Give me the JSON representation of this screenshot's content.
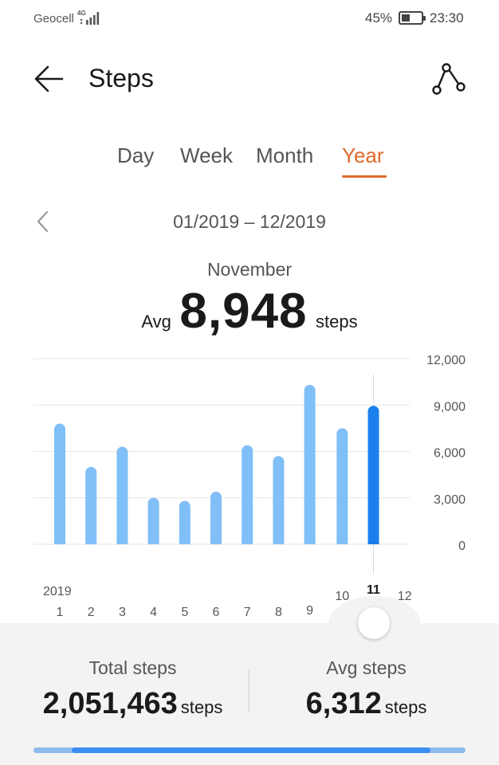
{
  "status_bar": {
    "carrier": "Geocell",
    "network": "4G",
    "battery": "45%",
    "battery_level": 0.45,
    "time": "23:30"
  },
  "header": {
    "title": "Steps",
    "back_icon": "arrow-left-icon",
    "share_icon": "share-icon"
  },
  "tabs": [
    {
      "label": "Day",
      "active": false
    },
    {
      "label": "Week",
      "active": false
    },
    {
      "label": "Month",
      "active": false
    },
    {
      "label": "Year",
      "active": true
    }
  ],
  "period": {
    "range": "01/2019 – 12/2019",
    "prev_icon": "chevron-left-icon"
  },
  "selection": {
    "month": "November",
    "prefix": "Avg",
    "value": "8,948",
    "unit": "steps"
  },
  "chart_data": {
    "type": "bar",
    "year_label": "2019",
    "categories": [
      "1",
      "2",
      "3",
      "4",
      "5",
      "6",
      "7",
      "8",
      "9",
      "10",
      "11",
      "12"
    ],
    "values": [
      7800,
      5000,
      6300,
      3000,
      2800,
      3400,
      6400,
      5700,
      10300,
      7500,
      8948,
      null
    ],
    "selected_index": 10,
    "y_ticks": [
      "12,000",
      "9,000",
      "6,000",
      "3,000",
      "0"
    ],
    "ylim": [
      0,
      12000
    ],
    "grid": true,
    "colors": {
      "bar": "#80bff7",
      "selected_bar": "#1a7fec",
      "grid": "#e6e6e6"
    }
  },
  "summary": {
    "total": {
      "label": "Total steps",
      "value": "2,051,463",
      "unit": "steps"
    },
    "average": {
      "label": "Avg steps",
      "value": "6,312",
      "unit": "steps"
    },
    "progress": 0.91
  },
  "colors": {
    "accent": "#e06a2c",
    "panel": "#f3f3f3"
  }
}
